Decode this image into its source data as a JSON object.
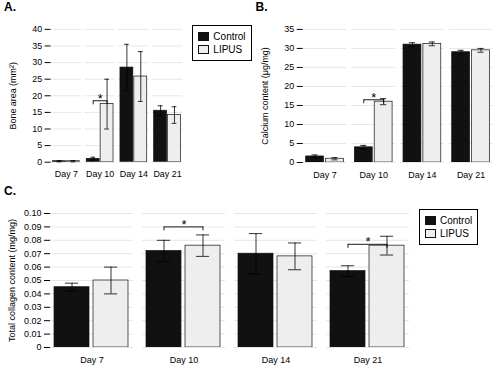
{
  "chart_data": [
    {
      "type": "bar",
      "title": "A.",
      "categories": [
        "Day 7",
        "Day 10",
        "Day 14",
        "Day 21"
      ],
      "series": [
        {
          "name": "Control",
          "color": "#111111",
          "values": [
            0.3,
            1.0,
            28.5,
            15.5
          ],
          "errors": [
            0.2,
            0.5,
            7.0,
            1.5
          ]
        },
        {
          "name": "LIPUS",
          "color": "#eeeeee",
          "values": [
            0.3,
            17.5,
            25.8,
            14.2
          ],
          "errors": [
            0.2,
            7.5,
            7.5,
            2.5
          ]
        }
      ],
      "ylabel": "Bone area (mm²)",
      "ylim": [
        0,
        40
      ],
      "yticks": [
        0,
        5,
        10,
        15,
        20,
        25,
        30,
        35,
        40
      ],
      "grid": true,
      "legend": "right",
      "annotations": [
        {
          "text": "*",
          "category": "Day 10",
          "y": 18.5
        }
      ]
    },
    {
      "type": "bar",
      "title": "B.",
      "categories": [
        "Day 7",
        "Day 10",
        "Day 14",
        "Day 21"
      ],
      "series": [
        {
          "name": "Control",
          "color": "#111111",
          "values": [
            1.6,
            4.0,
            31.0,
            29.0
          ],
          "errors": [
            0.4,
            0.5,
            0.5,
            0.5
          ]
        },
        {
          "name": "LIPUS",
          "color": "#eeeeee",
          "values": [
            1.0,
            16.0,
            31.2,
            29.5
          ],
          "errors": [
            0.3,
            0.8,
            0.5,
            0.5
          ]
        }
      ],
      "ylabel": "Calcium content (μg/mg)",
      "ylim": [
        0,
        35
      ],
      "yticks": [
        0,
        5,
        10,
        15,
        20,
        25,
        30,
        35
      ],
      "grid": true,
      "annotations": [
        {
          "text": "*",
          "category": "Day 10",
          "y": 16.5
        }
      ]
    },
    {
      "type": "bar",
      "title": "C.",
      "categories": [
        "Day 7",
        "Day 10",
        "Day 14",
        "Day 21"
      ],
      "series": [
        {
          "name": "Control",
          "color": "#111111",
          "values": [
            0.045,
            0.072,
            0.07,
            0.057
          ],
          "errors": [
            0.003,
            0.008,
            0.015,
            0.004
          ]
        },
        {
          "name": "LIPUS",
          "color": "#eeeeee",
          "values": [
            0.05,
            0.076,
            0.068,
            0.076
          ],
          "errors": [
            0.01,
            0.008,
            0.01,
            0.007
          ]
        }
      ],
      "ylabel": "Total collagen content (mg/mg)",
      "ylim": [
        0,
        0.1
      ],
      "yticks": [
        0,
        0.01,
        0.02,
        0.03,
        0.04,
        0.05,
        0.06,
        0.07,
        0.08,
        0.09,
        {
          "value": 0.1,
          "label": "0.10"
        }
      ],
      "grid": true,
      "legend": "right",
      "annotations": [
        {
          "text": "*",
          "category": "Day 10",
          "y": 0.09
        },
        {
          "text": "*",
          "category": "Day 21",
          "y": 0.077
        }
      ]
    }
  ]
}
